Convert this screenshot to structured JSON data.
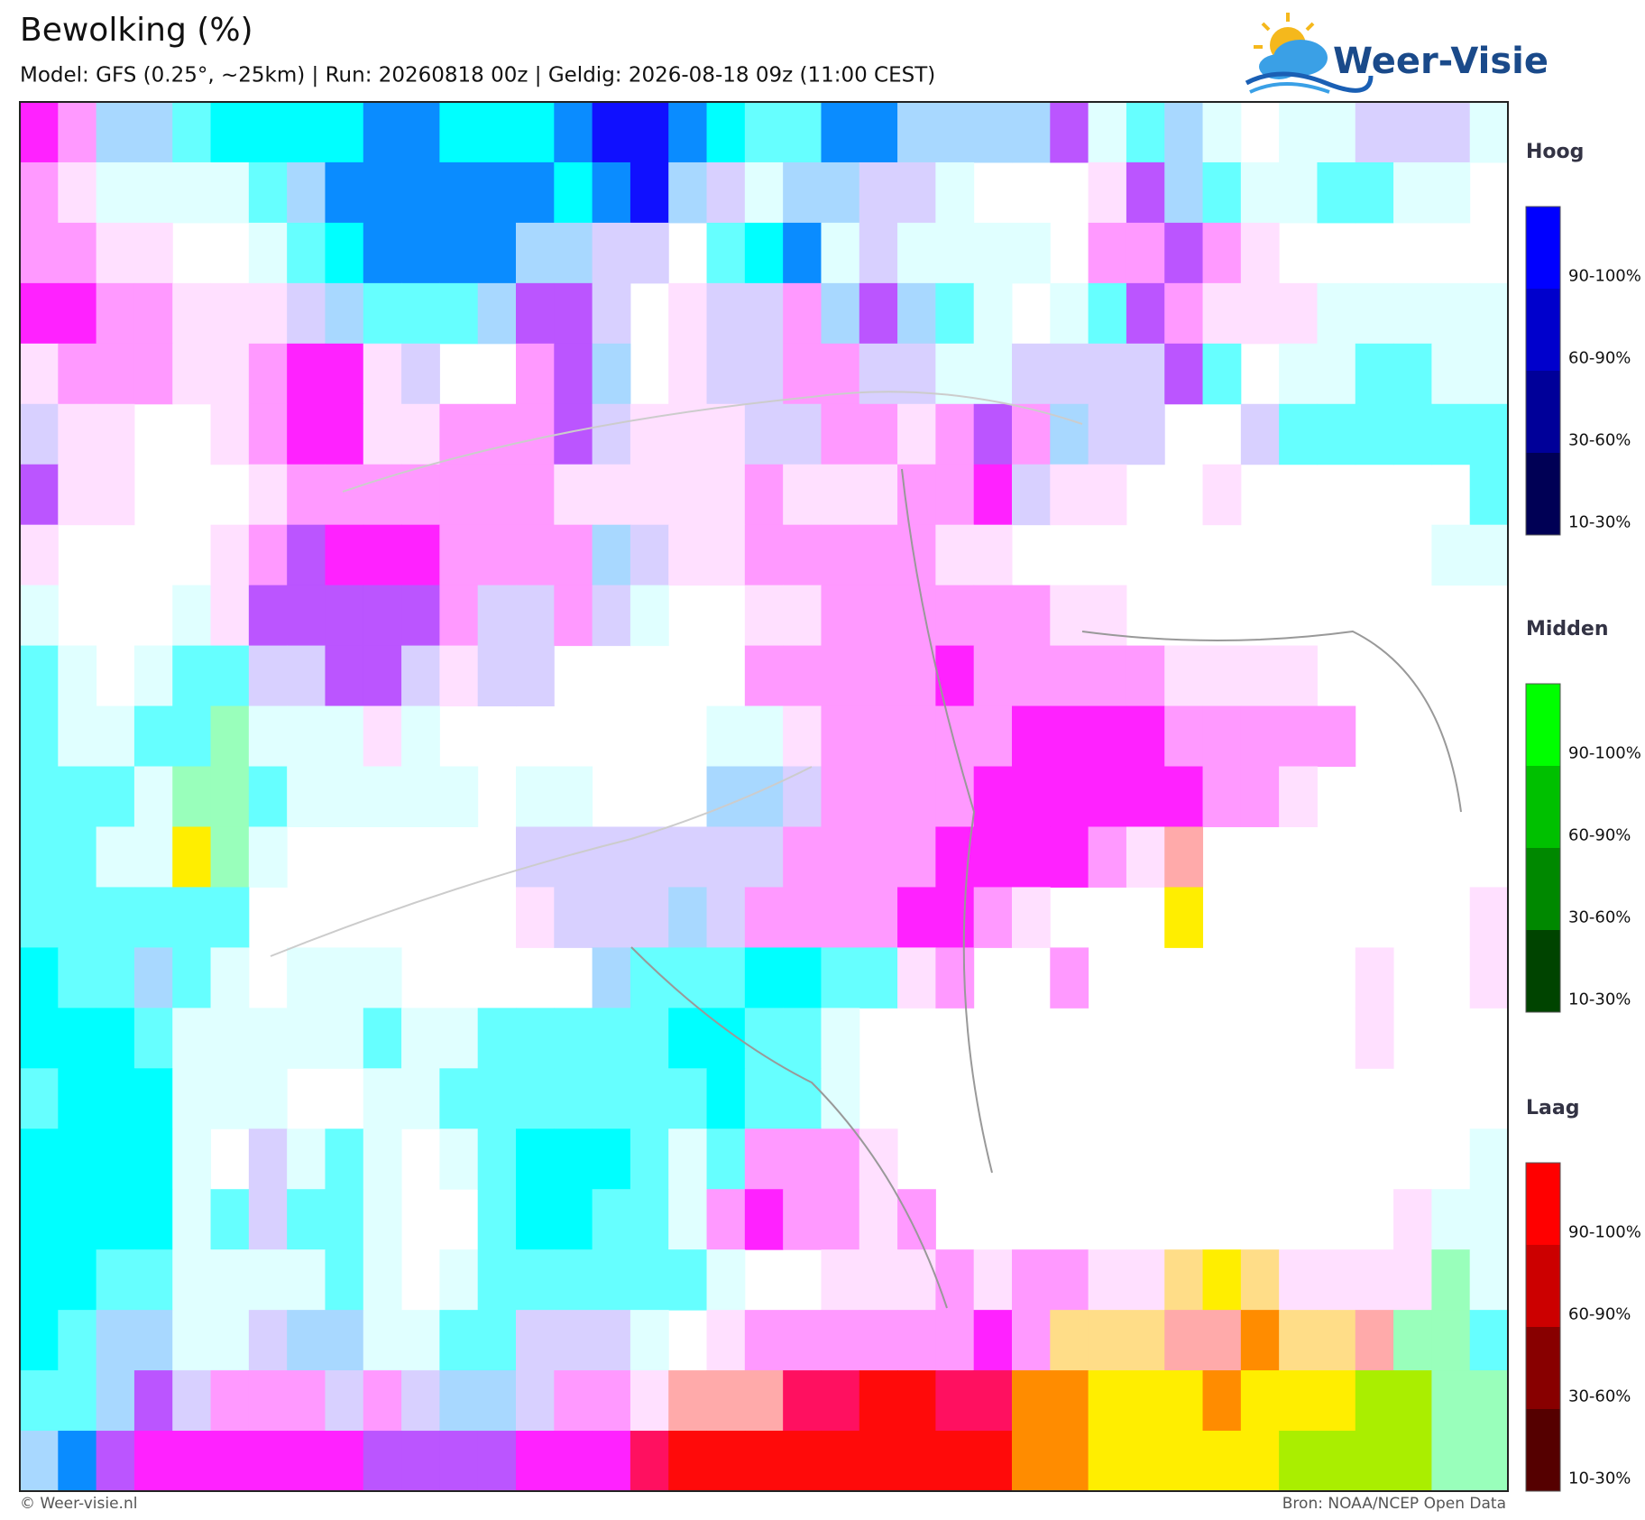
{
  "header": {
    "title": "Bewolking (%)",
    "subtitle": "Model: GFS (0.25°, ~25km)  |  Run: 20260818 00z  |  Geldig: 2026-08-18 09z (11:00 CEST)",
    "logo": "Weer-Visie"
  },
  "legend": [
    {
      "title": "Hoog",
      "items": [
        "90-100%",
        "60-90%",
        "30-60%",
        "10-30%"
      ],
      "colors": [
        "#0000ff",
        "#0000cc",
        "#000099",
        "#000055"
      ]
    },
    {
      "title": "Midden",
      "items": [
        "90-100%",
        "60-90%",
        "30-60%",
        "10-30%"
      ],
      "colors": [
        "#00ff00",
        "#00c000",
        "#008800",
        "#004400"
      ]
    },
    {
      "title": "Laag",
      "items": [
        "90-100%",
        "60-90%",
        "30-60%",
        "10-30%"
      ],
      "colors": [
        "#ff0000",
        "#cc0000",
        "#880000",
        "#550000"
      ]
    }
  ],
  "footer": {
    "left": "© Weer-visie.nl",
    "right": "Bron: NOAA/NCEP Open Data"
  }
}
